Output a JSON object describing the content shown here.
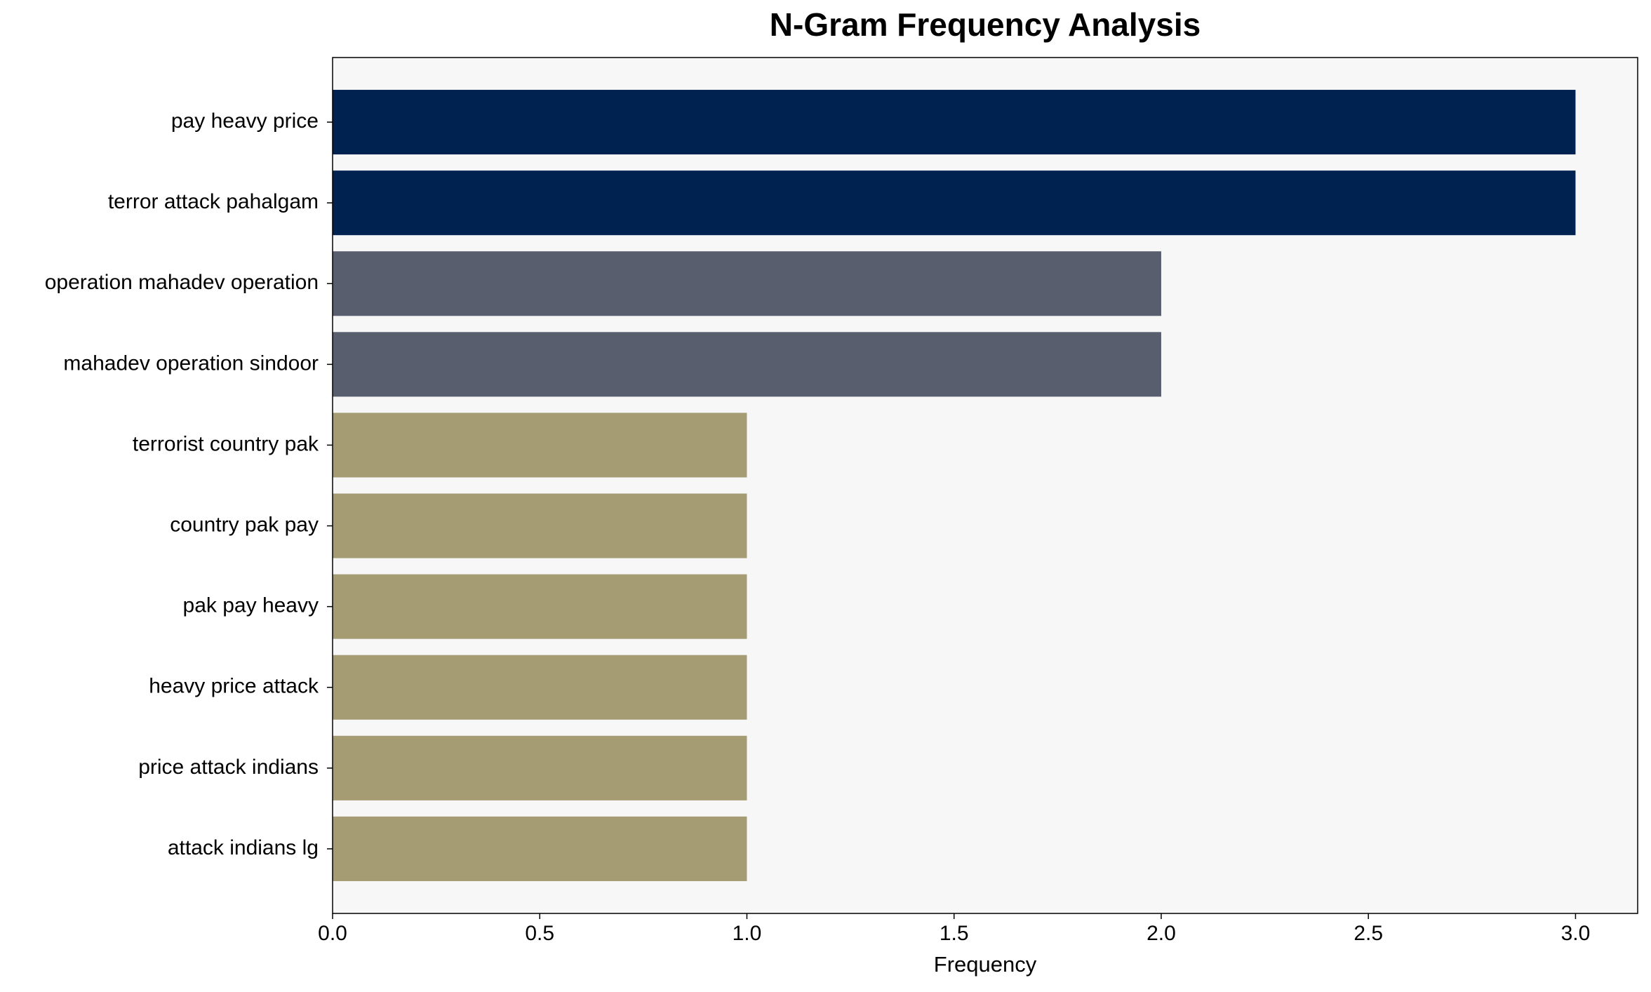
{
  "chart_data": {
    "type": "barh",
    "title": "N-Gram Frequency Analysis",
    "x_label": "Frequency",
    "categories": [
      "pay heavy price",
      "terror attack pahalgam",
      "operation mahadev operation",
      "mahadev operation sindoor",
      "terrorist country pak",
      "country pak pay",
      "pak pay heavy",
      "heavy price attack",
      "price attack indians",
      "attack indians lg"
    ],
    "values": [
      3,
      3,
      2,
      2,
      1,
      1,
      1,
      1,
      1,
      1
    ],
    "colors": [
      "#002251",
      "#002251",
      "#585e6e",
      "#585e6e",
      "#a59c74",
      "#a59c74",
      "#a59c74",
      "#a59c74",
      "#a59c74",
      "#a59c74"
    ],
    "xlim": [
      0,
      3.15
    ],
    "xticks": [
      {
        "value": 0,
        "label": "0.0"
      },
      {
        "value": 0.5,
        "label": "0.5"
      },
      {
        "value": 1,
        "label": "1.0"
      },
      {
        "value": 1.5,
        "label": "1.5"
      },
      {
        "value": 2,
        "label": "2.0"
      },
      {
        "value": 2.5,
        "label": "2.5"
      },
      {
        "value": 3,
        "label": "3.0"
      }
    ],
    "grid": false
  }
}
